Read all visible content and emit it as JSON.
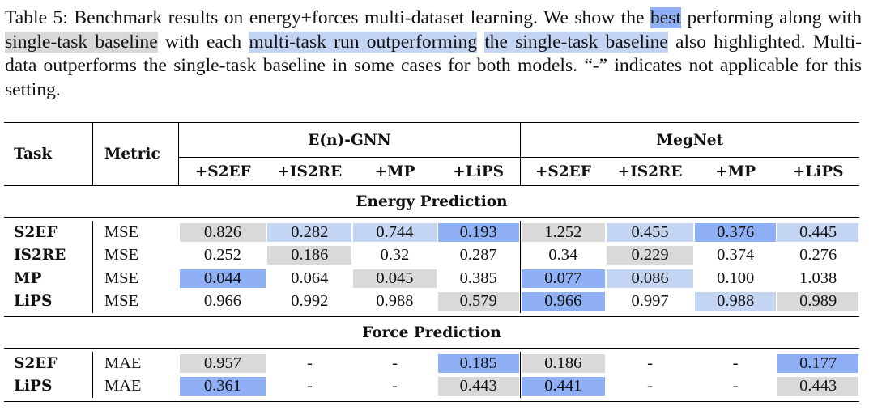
{
  "caption": {
    "part1": "Table 5: Benchmark results on energy+forces multi-dataset learning. We show the ",
    "best": "best",
    "part2": " performing along with ",
    "single": "single-task baseline",
    "part3": " with each ",
    "multi1": "multi-task run outperforming",
    "space": " ",
    "multi2": "the single-task baseline",
    "part4": " also highlighted. Multi-data outperforms the single-task baseline in some cases for both models. “-” indicates not applicable for this setting."
  },
  "header": {
    "task": "Task",
    "metric": "Metric",
    "group1": "E(n)-GNN",
    "group2": "MegNet",
    "cols": [
      "+S2EF",
      "+IS2RE",
      "+MP",
      "+LiPS",
      "+S2EF",
      "+IS2RE",
      "+MP",
      "+LiPS"
    ]
  },
  "sections": [
    {
      "title": "Energy Prediction",
      "rows": [
        {
          "task": "S2EF",
          "metric": "MSE",
          "values": [
            "0.826",
            "0.282",
            "0.744",
            "0.193",
            "1.252",
            "0.455",
            "0.376",
            "0.445"
          ],
          "hl": [
            "single",
            "multi",
            "multi",
            "best",
            "single",
            "multi",
            "best",
            "multi"
          ]
        },
        {
          "task": "IS2RE",
          "metric": "MSE",
          "values": [
            "0.252",
            "0.186",
            "0.32",
            "0.287",
            "0.34",
            "0.229",
            "0.374",
            "0.276"
          ],
          "hl": [
            "",
            "single",
            "",
            "",
            "",
            "single",
            "",
            ""
          ]
        },
        {
          "task": "MP",
          "metric": "MSE",
          "values": [
            "0.044",
            "0.064",
            "0.045",
            "0.385",
            "0.077",
            "0.086",
            "0.100",
            "1.038"
          ],
          "hl": [
            "best",
            "",
            "single",
            "",
            "best",
            "multi",
            "",
            ""
          ]
        },
        {
          "task": "LiPS",
          "metric": "MSE",
          "values": [
            "0.966",
            "0.992",
            "0.988",
            "0.579",
            "0.966",
            "0.997",
            "0.988",
            "0.989"
          ],
          "hl": [
            "",
            "",
            "",
            "single",
            "best",
            "",
            "multi",
            "single"
          ]
        }
      ]
    },
    {
      "title": "Force Prediction",
      "rows": [
        {
          "task": "S2EF",
          "metric": "MAE",
          "values": [
            "0.957",
            "-",
            "-",
            "0.185",
            "0.186",
            "-",
            "-",
            "0.177"
          ],
          "hl": [
            "single",
            "",
            "",
            "best",
            "single",
            "",
            "",
            "best"
          ]
        },
        {
          "task": "LiPS",
          "metric": "MAE",
          "values": [
            "0.361",
            "-",
            "-",
            "0.443",
            "0.441",
            "-",
            "-",
            "0.443"
          ],
          "hl": [
            "best",
            "",
            "",
            "single",
            "best",
            "",
            "",
            "single"
          ]
        }
      ]
    }
  ],
  "colors": {
    "best": "#8fb0f5",
    "single": "#d9d9d9",
    "multi": "#c4d5f4"
  }
}
